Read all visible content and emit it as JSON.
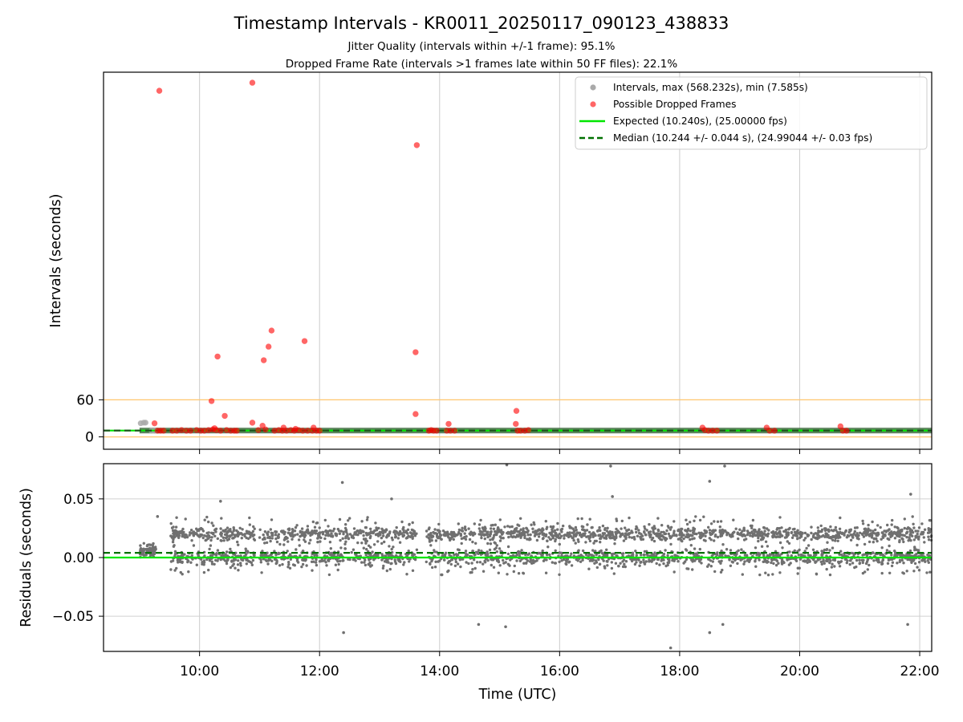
{
  "title": "Timestamp Intervals - KR0011_20250117_090123_438833",
  "subtitle_1": "Jitter Quality (intervals within +/-1 frame): 95.1%",
  "subtitle_2": "Dropped Frame Rate (intervals >1 frames late within 50 FF files): 22.1%",
  "colors": {
    "intervals": "#a9a9a9",
    "dropped": "#ff0000",
    "expected": "#00e600",
    "median": "#007000",
    "threshold": "#ffc66e",
    "residuals": "#707070",
    "grid": "#d0d0d0"
  },
  "chart_data": [
    {
      "type": "scatter",
      "panel": "top",
      "ylabel": "Intervals (seconds)",
      "yticks": [
        0,
        60
      ],
      "xlim_hours": [
        8.4,
        22.2
      ],
      "ylim": [
        -20,
        590
      ],
      "grid": "x",
      "legend_placement": "top-right",
      "legend": [
        {
          "key": "intervals",
          "label": "Intervals, max (568.232s), min (7.585s)"
        },
        {
          "key": "dropped",
          "label": "Possible Dropped Frames"
        },
        {
          "key": "expected",
          "label": "Expected (10.240s), (25.00000 fps)"
        },
        {
          "key": "median",
          "label": "Median (10.244 +/- 0.044 s), (24.99044 +/- 0.03 fps)"
        }
      ],
      "expected": 10.24,
      "median": 10.244,
      "threshold_lines": [
        0,
        60
      ],
      "normal_band": {
        "x_from": 9.0,
        "x_to": 22.2,
        "y": 10.24
      },
      "gray_points": [
        [
          9.02,
          22
        ],
        [
          9.07,
          23
        ],
        [
          9.1,
          23
        ],
        [
          9.2,
          10
        ],
        [
          9.25,
          10
        ]
      ],
      "dropped_points": [
        [
          9.33,
          560
        ],
        [
          10.88,
          573
        ],
        [
          13.62,
          472
        ],
        [
          10.3,
          130
        ],
        [
          11.2,
          172
        ],
        [
          11.15,
          146
        ],
        [
          11.07,
          124
        ],
        [
          11.75,
          155
        ],
        [
          13.6,
          137
        ],
        [
          10.2,
          58
        ],
        [
          10.42,
          34
        ],
        [
          10.88,
          23
        ],
        [
          11.05,
          18
        ],
        [
          13.6,
          37
        ],
        [
          15.28,
          42
        ],
        [
          15.27,
          21
        ],
        [
          14.15,
          21
        ],
        [
          9.25,
          22
        ],
        [
          11.4,
          15
        ],
        [
          11.9,
          15
        ],
        [
          18.38,
          15
        ],
        [
          19.45,
          15
        ],
        [
          20.68,
          17
        ],
        [
          11.6,
          13
        ],
        [
          9.3,
          10
        ],
        [
          9.35,
          10
        ],
        [
          9.4,
          10
        ],
        [
          9.55,
          10
        ],
        [
          9.62,
          10
        ],
        [
          9.7,
          11
        ],
        [
          9.78,
          10
        ],
        [
          9.85,
          10
        ],
        [
          9.95,
          11
        ],
        [
          10.02,
          10
        ],
        [
          10.08,
          10
        ],
        [
          10.15,
          11
        ],
        [
          10.22,
          12
        ],
        [
          10.25,
          14
        ],
        [
          10.28,
          11
        ],
        [
          10.35,
          10
        ],
        [
          10.45,
          11
        ],
        [
          10.52,
          10
        ],
        [
          10.58,
          10
        ],
        [
          10.62,
          10
        ],
        [
          10.98,
          11
        ],
        [
          11.1,
          12
        ],
        [
          11.25,
          10
        ],
        [
          11.32,
          11
        ],
        [
          11.38,
          10
        ],
        [
          11.45,
          10
        ],
        [
          11.52,
          11
        ],
        [
          11.58,
          10
        ],
        [
          11.65,
          11
        ],
        [
          11.72,
          10
        ],
        [
          11.8,
          10
        ],
        [
          11.88,
          10
        ],
        [
          11.95,
          10
        ],
        [
          12.0,
          10
        ],
        [
          13.82,
          10
        ],
        [
          13.86,
          11
        ],
        [
          13.9,
          10
        ],
        [
          13.95,
          10
        ],
        [
          14.12,
          10
        ],
        [
          14.18,
          10
        ],
        [
          14.25,
          10
        ],
        [
          15.3,
          10
        ],
        [
          15.35,
          10
        ],
        [
          15.42,
          10
        ],
        [
          15.48,
          11
        ],
        [
          18.42,
          11
        ],
        [
          18.48,
          10
        ],
        [
          18.55,
          10
        ],
        [
          18.62,
          10
        ],
        [
          19.5,
          10
        ],
        [
          19.58,
          10
        ],
        [
          20.72,
          10
        ],
        [
          20.78,
          10
        ]
      ]
    },
    {
      "type": "scatter",
      "panel": "bottom",
      "xlabel": "Time (UTC)",
      "ylabel": "Residuals (seconds)",
      "yticks": [
        "0.05",
        "0.00",
        "−0.05"
      ],
      "ytick_values": [
        0.05,
        0.0,
        -0.05
      ],
      "xticks": [
        "10:00",
        "12:00",
        "14:00",
        "16:00",
        "18:00",
        "20:00",
        "22:00"
      ],
      "xtick_values": [
        10,
        12,
        14,
        16,
        18,
        20,
        22
      ],
      "xlim_hours": [
        8.4,
        22.2
      ],
      "ylim": [
        -0.08,
        0.08
      ],
      "grid": "both",
      "expected_residual": 0.0,
      "median_residual": 0.004,
      "residual_summary": {
        "start": 9.0,
        "end": 22.2,
        "bands": [
          0.02,
          0.0
        ],
        "spread": 0.02,
        "gaps": [
          [
            9.28,
            9.52
          ],
          [
            10.92,
            11.0
          ],
          [
            13.62,
            13.78
          ]
        ]
      },
      "outliers": [
        [
          12.38,
          0.064
        ],
        [
          12.4,
          -0.064
        ],
        [
          13.2,
          0.05
        ],
        [
          15.12,
          0.079
        ],
        [
          16.85,
          0.078
        ],
        [
          16.88,
          0.052
        ],
        [
          18.5,
          0.065
        ],
        [
          18.75,
          0.078
        ],
        [
          17.85,
          -0.077
        ],
        [
          18.5,
          -0.064
        ],
        [
          18.72,
          -0.057
        ],
        [
          14.65,
          -0.057
        ],
        [
          15.1,
          -0.059
        ],
        [
          21.8,
          -0.057
        ],
        [
          21.85,
          0.054
        ],
        [
          10.35,
          0.048
        ],
        [
          9.3,
          0.035
        ]
      ]
    }
  ]
}
